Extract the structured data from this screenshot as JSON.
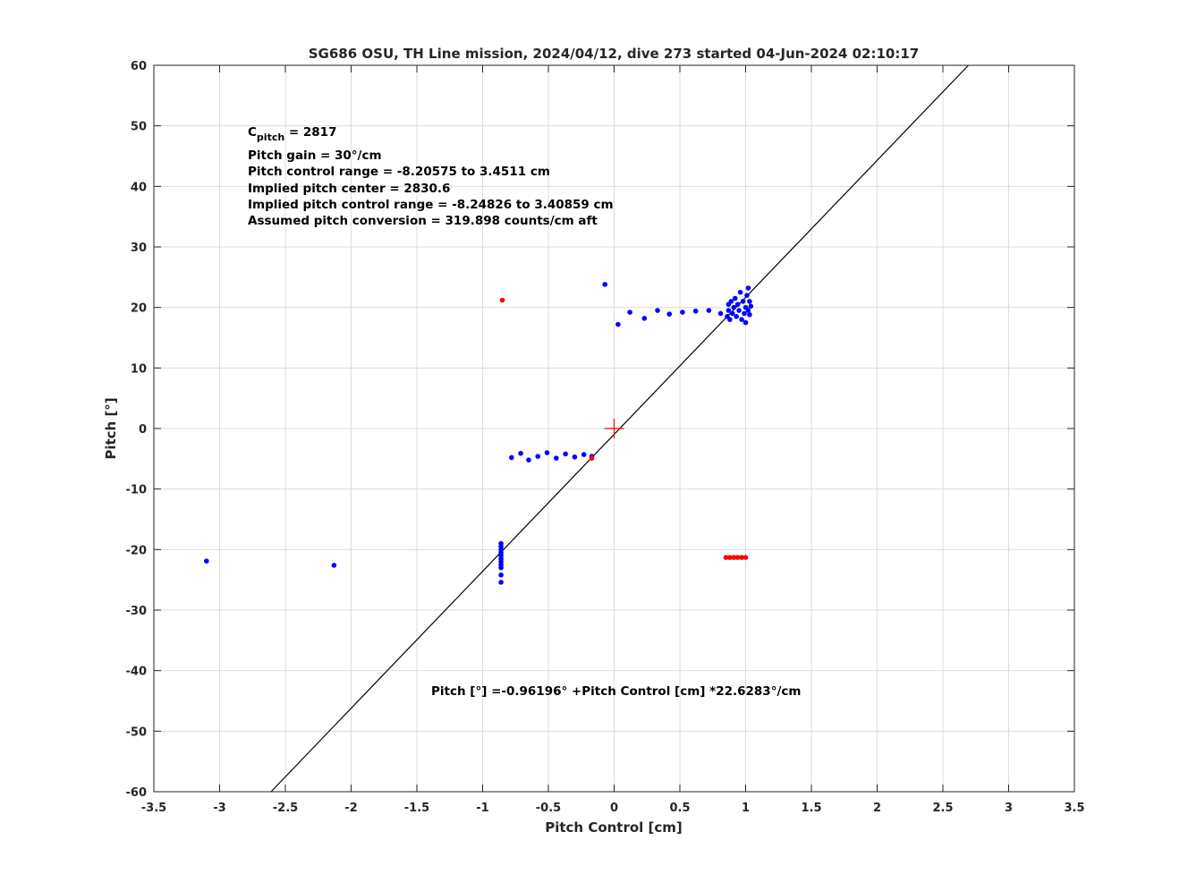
{
  "chart_data": {
    "type": "scatter",
    "title": "SG686 OSU, TH Line mission, 2024/04/12, dive 273 started 04-Jun-2024 02:10:17",
    "xlabel": "Pitch Control [cm]",
    "ylabel": "Pitch [°]",
    "xlim": [
      -3.5,
      3.5
    ],
    "ylim": [
      -60,
      60
    ],
    "xticks": [
      -3.5,
      -3,
      -2.5,
      -2,
      -1.5,
      -1,
      -0.5,
      0,
      0.5,
      1,
      1.5,
      2,
      2.5,
      3,
      3.5
    ],
    "yticks": [
      -60,
      -50,
      -40,
      -30,
      -20,
      -10,
      0,
      10,
      20,
      30,
      40,
      50,
      60
    ],
    "xtick_labels": [
      "-3.5",
      "-3",
      "-2.5",
      "-2",
      "-1.5",
      "-1",
      "-0.5",
      "0",
      "0.5",
      "1",
      "1.5",
      "2",
      "2.5",
      "3",
      "3.5"
    ],
    "ytick_labels": [
      "-60",
      "-50",
      "-40",
      "-30",
      "-20",
      "-10",
      "0",
      "10",
      "20",
      "30",
      "40",
      "50",
      "60"
    ],
    "grid": true,
    "series": [
      {
        "color": "#0000ff",
        "points": [
          [
            -3.1,
            -21.9
          ],
          [
            -2.13,
            -22.6
          ],
          [
            -0.86,
            -19.0
          ],
          [
            -0.86,
            -19.5
          ],
          [
            -0.86,
            -20.0
          ],
          [
            -0.86,
            -20.5
          ],
          [
            -0.86,
            -21.0
          ],
          [
            -0.86,
            -21.5
          ],
          [
            -0.86,
            -22.0
          ],
          [
            -0.86,
            -22.5
          ],
          [
            -0.86,
            -23.0
          ],
          [
            -0.86,
            -24.2
          ],
          [
            -0.86,
            -25.4
          ],
          [
            -0.78,
            -4.8
          ],
          [
            -0.71,
            -4.1
          ],
          [
            -0.65,
            -5.2
          ],
          [
            -0.58,
            -4.6
          ],
          [
            -0.51,
            -4.0
          ],
          [
            -0.44,
            -4.9
          ],
          [
            -0.37,
            -4.2
          ],
          [
            -0.3,
            -4.7
          ],
          [
            -0.23,
            -4.3
          ],
          [
            -0.17,
            -4.6
          ],
          [
            -0.07,
            23.8
          ],
          [
            0.03,
            17.2
          ],
          [
            0.12,
            19.2
          ],
          [
            0.23,
            18.2
          ],
          [
            0.33,
            19.5
          ],
          [
            0.42,
            18.9
          ],
          [
            0.52,
            19.2
          ],
          [
            0.62,
            19.4
          ],
          [
            0.72,
            19.5
          ],
          [
            0.81,
            19.0
          ],
          [
            0.86,
            18.5
          ],
          [
            0.87,
            19.5
          ],
          [
            0.87,
            20.5
          ],
          [
            0.88,
            18.0
          ],
          [
            0.89,
            21.0
          ],
          [
            0.9,
            19.0
          ],
          [
            0.91,
            20.0
          ],
          [
            0.92,
            21.5
          ],
          [
            0.93,
            18.5
          ],
          [
            0.94,
            20.5
          ],
          [
            0.95,
            19.5
          ],
          [
            0.96,
            22.5
          ],
          [
            0.97,
            18.0
          ],
          [
            0.98,
            21.0
          ],
          [
            0.99,
            19.0
          ],
          [
            1.0,
            17.5
          ],
          [
            1.0,
            20.0
          ],
          [
            1.01,
            22.0
          ],
          [
            1.02,
            23.2
          ],
          [
            1.02,
            19.5
          ],
          [
            1.03,
            21.0
          ],
          [
            1.03,
            18.8
          ],
          [
            1.04,
            20.2
          ]
        ]
      },
      {
        "color": "#ff0000",
        "points": [
          [
            -0.85,
            21.2
          ],
          [
            -0.17,
            -4.9
          ],
          [
            0.85,
            -21.3
          ],
          [
            0.88,
            -21.3
          ],
          [
            0.91,
            -21.3
          ],
          [
            0.94,
            -21.3
          ],
          [
            0.97,
            -21.3
          ],
          [
            1.0,
            -21.3
          ]
        ]
      }
    ],
    "fit_line": {
      "color": "#000000",
      "intercept": -0.96196,
      "slope": 22.6283
    },
    "center_marker": {
      "color": "#ff0000",
      "x": 0,
      "y": 0
    },
    "annotations": {
      "cpitch_main": "C",
      "cpitch_sub": "pitch",
      "cpitch_value": " = 2817",
      "lines": [
        "Pitch gain = 30°/cm",
        "Pitch control range = -8.20575 to 3.4511 cm",
        "Implied pitch center = 2830.6",
        "Implied pitch control range = -8.24826 to 3.40859 cm",
        "Assumed pitch conversion = 319.898 counts/cm aft"
      ],
      "fit_equation": "Pitch [°] =-0.96196° +Pitch Control [cm] *22.6283°/cm"
    }
  }
}
